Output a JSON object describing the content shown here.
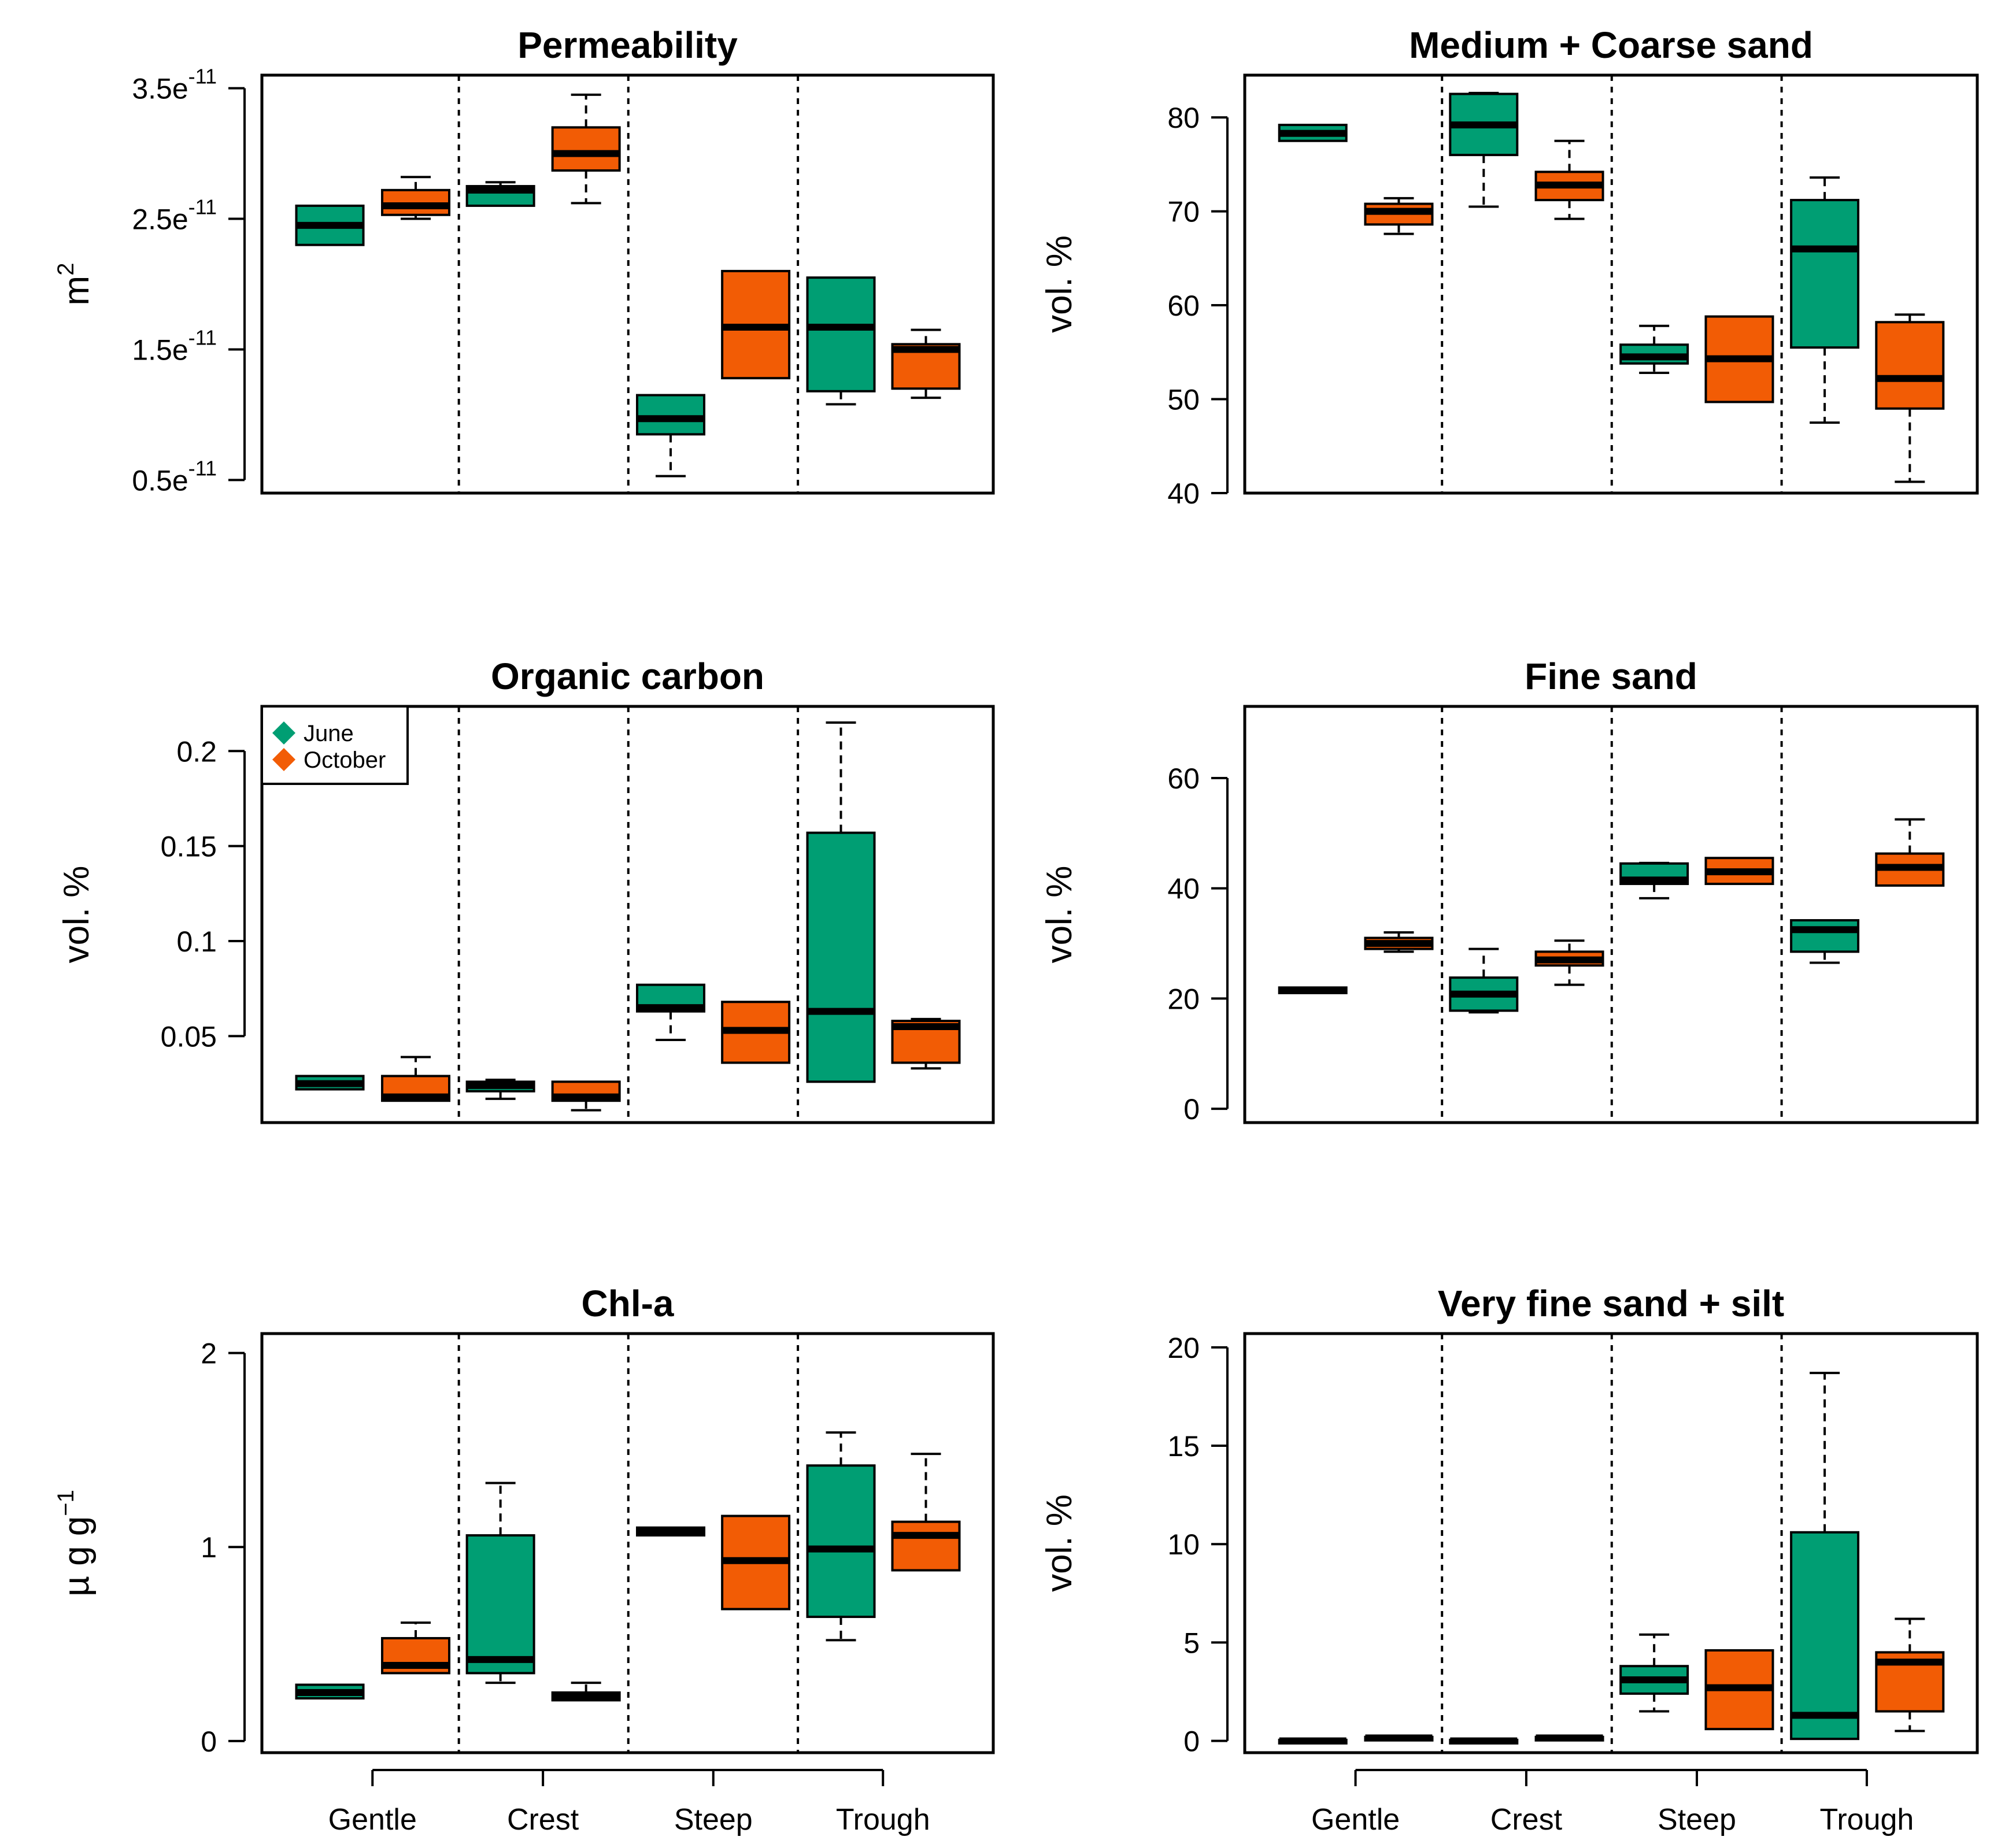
{
  "chart_data": [
    {
      "type": "box",
      "title": "Permeability",
      "ylabel": "m2",
      "ylabel_main": "m",
      "ylabel_sup": "2",
      "ylim": [
        0.4,
        3.6
      ],
      "yscale_note": "values in units of 1e-11 m2",
      "yticks": [
        {
          "v": 0.5,
          "base": "0.5e",
          "exp": "-11"
        },
        {
          "v": 1.5,
          "base": "1.5e",
          "exp": "-11"
        },
        {
          "v": 2.5,
          "base": "2.5e",
          "exp": "-11"
        },
        {
          "v": 3.5,
          "base": "3.5e",
          "exp": "-11"
        }
      ],
      "categories": [
        "Gentle",
        "Crest",
        "Steep",
        "Trough"
      ],
      "series": [
        {
          "name": "June",
          "color": "#009E73",
          "boxes": [
            {
              "min": 2.3,
              "q1": 2.3,
              "median": 2.45,
              "q3": 2.6,
              "max": 2.6
            },
            {
              "min": 2.6,
              "q1": 2.6,
              "median": 2.72,
              "q3": 2.75,
              "max": 2.78
            },
            {
              "min": 0.53,
              "q1": 0.85,
              "median": 0.97,
              "q3": 1.15,
              "max": 1.15
            },
            {
              "min": 1.08,
              "q1": 1.18,
              "median": 1.67,
              "q3": 2.05,
              "max": 2.05
            }
          ]
        },
        {
          "name": "October",
          "color": "#F25C05",
          "boxes": [
            {
              "min": 2.5,
              "q1": 2.53,
              "median": 2.6,
              "q3": 2.72,
              "max": 2.82
            },
            {
              "min": 2.62,
              "q1": 2.87,
              "median": 3.0,
              "q3": 3.2,
              "max": 3.45
            },
            {
              "min": 1.28,
              "q1": 1.28,
              "median": 1.67,
              "q3": 2.1,
              "max": 2.1
            },
            {
              "min": 1.13,
              "q1": 1.2,
              "median": 1.5,
              "q3": 1.54,
              "max": 1.65
            }
          ]
        }
      ]
    },
    {
      "type": "box",
      "title": "Medium + Coarse sand",
      "ylabel": "vol. %",
      "ylim": [
        40,
        84.5
      ],
      "yticks": [
        {
          "v": 40,
          "label": "40"
        },
        {
          "v": 50,
          "label": "50"
        },
        {
          "v": 60,
          "label": "60"
        },
        {
          "v": 70,
          "label": "70"
        },
        {
          "v": 80,
          "label": "80"
        }
      ],
      "categories": [
        "Gentle",
        "Crest",
        "Steep",
        "Trough"
      ],
      "series": [
        {
          "name": "June",
          "color": "#009E73",
          "boxes": [
            {
              "min": 77.5,
              "q1": 77.5,
              "median": 78.3,
              "q3": 79.2,
              "max": 79.2
            },
            {
              "min": 70.5,
              "q1": 76.0,
              "median": 79.2,
              "q3": 82.5,
              "max": 82.6
            },
            {
              "min": 52.8,
              "q1": 53.8,
              "median": 54.5,
              "q3": 55.8,
              "max": 57.8
            },
            {
              "min": 47.5,
              "q1": 55.5,
              "median": 66.0,
              "q3": 71.2,
              "max": 73.6
            }
          ]
        },
        {
          "name": "October",
          "color": "#F25C05",
          "boxes": [
            {
              "min": 67.6,
              "q1": 68.6,
              "median": 70.0,
              "q3": 70.8,
              "max": 71.4
            },
            {
              "min": 69.2,
              "q1": 71.2,
              "median": 72.8,
              "q3": 74.2,
              "max": 77.5
            },
            {
              "min": 49.7,
              "q1": 49.7,
              "median": 54.3,
              "q3": 58.8,
              "max": 58.8
            },
            {
              "min": 41.2,
              "q1": 49.0,
              "median": 52.2,
              "q3": 58.2,
              "max": 59.0
            }
          ]
        }
      ]
    },
    {
      "type": "box",
      "title": "Organic carbon",
      "ylabel": "vol. %",
      "ylim": [
        0.0045,
        0.2235
      ],
      "yticks": [
        {
          "v": 0.05,
          "label": "0.05"
        },
        {
          "v": 0.1,
          "label": "0.1"
        },
        {
          "v": 0.15,
          "label": "0.15"
        },
        {
          "v": 0.2,
          "label": "0.2"
        }
      ],
      "legend": {
        "position": "top-left",
        "entries": [
          "June",
          "October"
        ]
      },
      "categories": [
        "Gentle",
        "Crest",
        "Steep",
        "Trough"
      ],
      "series": [
        {
          "name": "June",
          "color": "#009E73",
          "boxes": [
            {
              "min": 0.022,
              "q1": 0.022,
              "median": 0.025,
              "q3": 0.029,
              "max": 0.029
            },
            {
              "min": 0.017,
              "q1": 0.021,
              "median": 0.024,
              "q3": 0.026,
              "max": 0.027
            },
            {
              "min": 0.048,
              "q1": 0.063,
              "median": 0.065,
              "q3": 0.077,
              "max": 0.077
            },
            {
              "min": 0.026,
              "q1": 0.026,
              "median": 0.063,
              "q3": 0.157,
              "max": 0.215
            }
          ]
        },
        {
          "name": "October",
          "color": "#F25C05",
          "boxes": [
            {
              "min": 0.016,
              "q1": 0.016,
              "median": 0.018,
              "q3": 0.029,
              "max": 0.039
            },
            {
              "min": 0.011,
              "q1": 0.016,
              "median": 0.018,
              "q3": 0.026,
              "max": 0.026
            },
            {
              "min": 0.036,
              "q1": 0.036,
              "median": 0.053,
              "q3": 0.068,
              "max": 0.068
            },
            {
              "min": 0.033,
              "q1": 0.036,
              "median": 0.055,
              "q3": 0.058,
              "max": 0.059
            }
          ]
        }
      ]
    },
    {
      "type": "box",
      "title": "Fine sand",
      "ylabel": "vol. %",
      "ylim": [
        -2.5,
        73
      ],
      "yticks": [
        {
          "v": 0,
          "label": "0"
        },
        {
          "v": 20,
          "label": "20"
        },
        {
          "v": 40,
          "label": "40"
        },
        {
          "v": 60,
          "label": "60"
        }
      ],
      "categories": [
        "Gentle",
        "Crest",
        "Steep",
        "Trough"
      ],
      "series": [
        {
          "name": "June",
          "color": "#009E73",
          "boxes": [
            {
              "min": 21.0,
              "q1": 21.0,
              "median": 21.5,
              "q3": 22.0,
              "max": 22.0
            },
            {
              "min": 17.5,
              "q1": 17.8,
              "median": 20.8,
              "q3": 23.8,
              "max": 29.0
            },
            {
              "min": 38.2,
              "q1": 40.8,
              "median": 41.5,
              "q3": 44.5,
              "max": 44.6
            },
            {
              "min": 26.5,
              "q1": 28.5,
              "median": 32.5,
              "q3": 34.2,
              "max": 34.2
            }
          ]
        },
        {
          "name": "October",
          "color": "#F25C05",
          "boxes": [
            {
              "min": 28.5,
              "q1": 29.0,
              "median": 30.0,
              "q3": 31.0,
              "max": 32.0
            },
            {
              "min": 22.5,
              "q1": 26.0,
              "median": 27.0,
              "q3": 28.5,
              "max": 30.5
            },
            {
              "min": 40.8,
              "q1": 40.8,
              "median": 43.0,
              "q3": 45.5,
              "max": 45.5
            },
            {
              "min": 40.5,
              "q1": 40.5,
              "median": 43.8,
              "q3": 46.3,
              "max": 52.5
            }
          ]
        }
      ]
    },
    {
      "type": "box",
      "title": "Chl-a",
      "ylabel": "µg g-1",
      "ylabel_main": "µ g g",
      "ylabel_sup": "−1",
      "ylim": [
        -0.06,
        2.1
      ],
      "yticks": [
        {
          "v": 0,
          "label": "0"
        },
        {
          "v": 1,
          "label": "1"
        },
        {
          "v": 2,
          "label": "2"
        }
      ],
      "categories": [
        "Gentle",
        "Crest",
        "Steep",
        "Trough"
      ],
      "series": [
        {
          "name": "June",
          "color": "#009E73",
          "boxes": [
            {
              "min": 0.22,
              "q1": 0.22,
              "median": 0.25,
              "q3": 0.29,
              "max": 0.29
            },
            {
              "min": 0.3,
              "q1": 0.35,
              "median": 0.42,
              "q3": 1.06,
              "max": 1.33
            },
            {
              "min": 1.06,
              "q1": 1.06,
              "median": 1.08,
              "q3": 1.1,
              "max": 1.1
            },
            {
              "min": 0.52,
              "q1": 0.64,
              "median": 0.99,
              "q3": 1.42,
              "max": 1.59
            }
          ]
        },
        {
          "name": "October",
          "color": "#F25C05",
          "boxes": [
            {
              "min": 0.35,
              "q1": 0.35,
              "median": 0.39,
              "q3": 0.53,
              "max": 0.61
            },
            {
              "min": 0.21,
              "q1": 0.21,
              "median": 0.23,
              "q3": 0.25,
              "max": 0.3
            },
            {
              "min": 0.68,
              "q1": 0.68,
              "median": 0.93,
              "q3": 1.16,
              "max": 1.16
            },
            {
              "min": 0.88,
              "q1": 0.88,
              "median": 1.06,
              "q3": 1.13,
              "max": 1.48
            }
          ]
        }
      ]
    },
    {
      "type": "box",
      "title": "Very fine sand + silt",
      "ylabel": "vol. %",
      "ylim": [
        -0.6,
        20.7
      ],
      "yticks": [
        {
          "v": 0,
          "label": "0"
        },
        {
          "v": 5,
          "label": "5"
        },
        {
          "v": 10,
          "label": "10"
        },
        {
          "v": 15,
          "label": "15"
        },
        {
          "v": 20,
          "label": "20"
        }
      ],
      "categories": [
        "Gentle",
        "Crest",
        "Steep",
        "Trough"
      ],
      "series": [
        {
          "name": "June",
          "color": "#009E73",
          "boxes": [
            {
              "min": -0.05,
              "q1": -0.05,
              "median": 0.0,
              "q3": 0.05,
              "max": 0.05
            },
            {
              "min": -0.05,
              "q1": -0.05,
              "median": 0.0,
              "q3": 0.05,
              "max": 0.05
            },
            {
              "min": 1.5,
              "q1": 2.4,
              "median": 3.1,
              "q3": 3.8,
              "max": 5.4
            },
            {
              "min": 0.1,
              "q1": 0.1,
              "median": 1.3,
              "q3": 10.6,
              "max": 18.7
            }
          ]
        },
        {
          "name": "October",
          "color": "#F25C05",
          "boxes": [
            {
              "min": 0.1,
              "q1": 0.1,
              "median": 0.15,
              "q3": 0.2,
              "max": 0.2
            },
            {
              "min": 0.1,
              "q1": 0.1,
              "median": 0.15,
              "q3": 0.2,
              "max": 0.2
            },
            {
              "min": 0.6,
              "q1": 0.6,
              "median": 2.7,
              "q3": 4.6,
              "max": 4.6
            },
            {
              "min": 0.5,
              "q1": 1.5,
              "median": 4.0,
              "q3": 4.5,
              "max": 6.2
            }
          ]
        }
      ]
    }
  ]
}
